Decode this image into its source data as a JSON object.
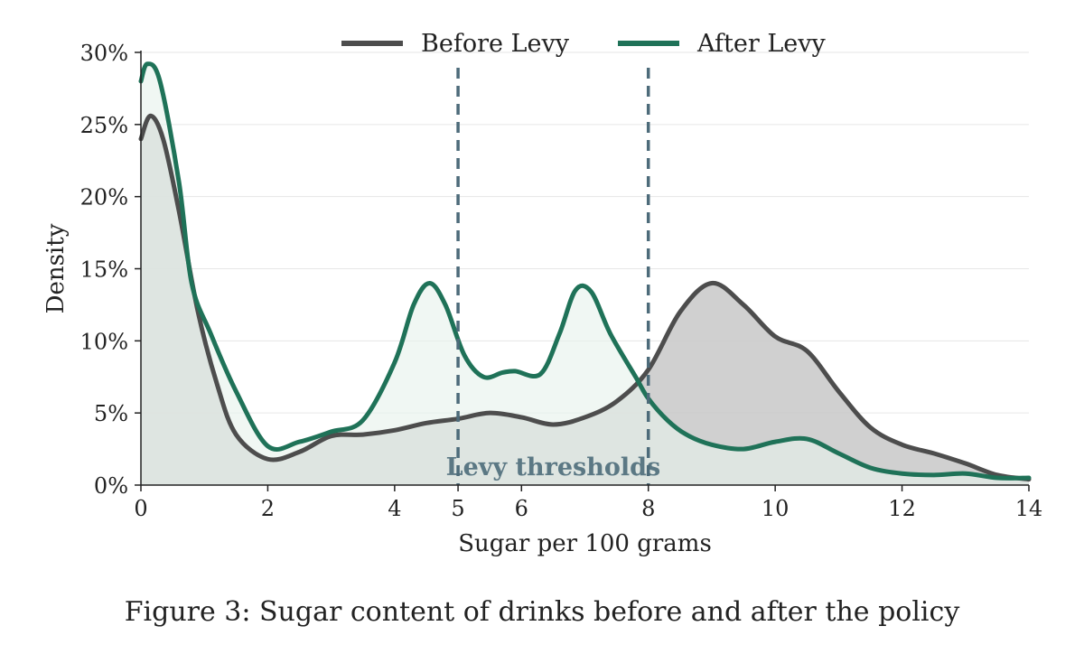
{
  "chart_data": {
    "type": "area",
    "xlabel": "Sugar per 100 grams",
    "ylabel": "Density",
    "xlim": [
      0,
      14
    ],
    "ylim": [
      0,
      30
    ],
    "xticks": [
      0,
      2,
      4,
      5,
      6,
      8,
      10,
      12,
      14
    ],
    "highlight_xticks": [
      5,
      8
    ],
    "yticks": [
      0,
      5,
      10,
      15,
      20,
      25,
      30
    ],
    "ytick_labels": [
      "0%",
      "5%",
      "10%",
      "15%",
      "20%",
      "25%",
      "30%"
    ],
    "grid": "horizontal",
    "legend_position": "top-center",
    "series": [
      {
        "name": "Before Levy",
        "color": "#4d4d4d",
        "fill": "#c8c8c8",
        "x": [
          0,
          0.15,
          0.35,
          0.6,
          0.9,
          1.2,
          1.5,
          2.0,
          2.5,
          3.0,
          3.5,
          4.0,
          4.5,
          5.0,
          5.5,
          6.0,
          6.5,
          7.0,
          7.5,
          8.0,
          8.5,
          9.0,
          9.5,
          10.0,
          10.5,
          11.0,
          11.5,
          12.0,
          12.5,
          13.0,
          13.5,
          14.0
        ],
        "values": [
          24,
          25.6,
          24,
          19,
          12,
          7,
          3.5,
          1.8,
          2.3,
          3.4,
          3.5,
          3.8,
          4.3,
          4.6,
          5.0,
          4.7,
          4.2,
          4.7,
          5.8,
          8,
          12,
          14,
          12.5,
          10.3,
          9.3,
          6.5,
          4,
          2.8,
          2.2,
          1.5,
          0.7,
          0.4
        ]
      },
      {
        "name": "After Levy",
        "color": "#1f7258",
        "fill": "#e6f2ec",
        "x": [
          0,
          0.1,
          0.3,
          0.6,
          0.8,
          1.1,
          1.5,
          2.0,
          2.5,
          3.0,
          3.5,
          4.0,
          4.3,
          4.55,
          4.8,
          5.1,
          5.4,
          5.7,
          5.9,
          6.3,
          6.6,
          6.85,
          7.1,
          7.4,
          7.8,
          8.0,
          8.3,
          8.6,
          9.0,
          9.5,
          10.0,
          10.5,
          11.0,
          11.5,
          12.0,
          12.5,
          13.0,
          13.5,
          14.0
        ],
        "values": [
          28,
          29.2,
          28,
          21,
          14,
          10.5,
          6.5,
          2.7,
          3.0,
          3.7,
          4.5,
          8.5,
          12.5,
          14,
          12.5,
          9,
          7.5,
          7.8,
          7.9,
          7.7,
          10.5,
          13.5,
          13.4,
          10.5,
          7.5,
          6,
          4.5,
          3.5,
          2.8,
          2.5,
          3.0,
          3.2,
          2.2,
          1.2,
          0.8,
          0.7,
          0.8,
          0.5,
          0.5
        ]
      }
    ],
    "thresholds": [
      5,
      8
    ],
    "threshold_color": "#4d6b7a",
    "annotation": "Levy thresholds"
  },
  "caption": "Figure 3: Sugar content of drinks before and after the policy"
}
